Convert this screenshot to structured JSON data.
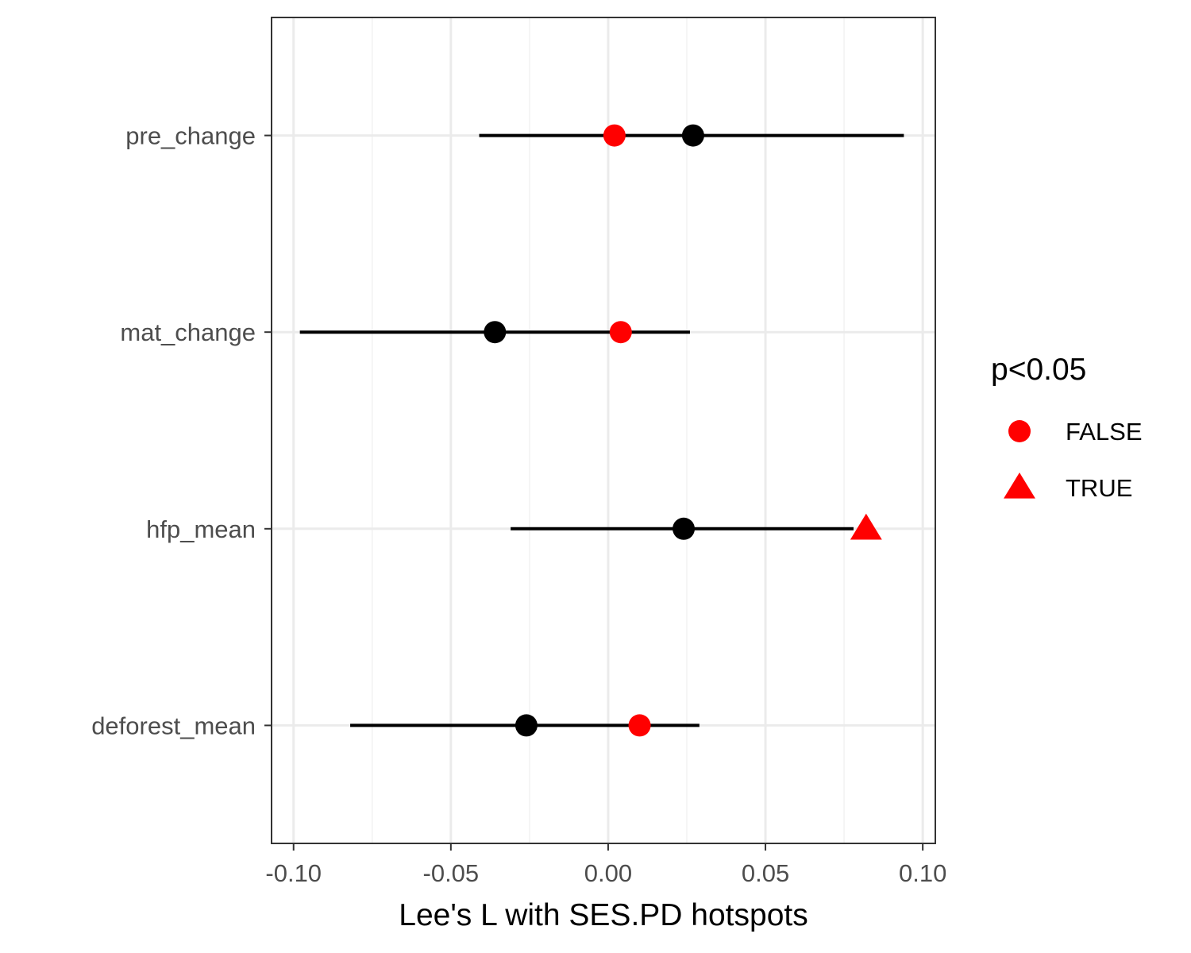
{
  "chart_data": {
    "type": "scatter",
    "subtype": "dot-whisker",
    "xlabel": "Lee's L with SES.PD hotspots",
    "ylabel": "",
    "xlim": [
      -0.107,
      0.104
    ],
    "x_ticks": [
      -0.1,
      -0.05,
      0.0,
      0.05,
      0.1
    ],
    "x_tick_labels": [
      "-0.10",
      "-0.05",
      "0.00",
      "0.05",
      "0.10"
    ],
    "categories": [
      "pre_change",
      "mat_change",
      "hfp_mean",
      "deforest_mean"
    ],
    "grid": true,
    "legend": {
      "title": "p<0.05",
      "position": "right",
      "items": [
        {
          "label": "FALSE",
          "shape": "circle",
          "color": "#ff0000"
        },
        {
          "label": "TRUE",
          "shape": "triangle",
          "color": "#ff0000"
        }
      ]
    },
    "intervals": [
      {
        "category": "pre_change",
        "center": 0.027,
        "low": -0.041,
        "high": 0.094
      },
      {
        "category": "mat_change",
        "center": -0.036,
        "low": -0.098,
        "high": 0.026
      },
      {
        "category": "hfp_mean",
        "center": 0.024,
        "low": -0.031,
        "high": 0.078
      },
      {
        "category": "deforest_mean",
        "center": -0.026,
        "low": -0.082,
        "high": 0.029
      }
    ],
    "observed": [
      {
        "category": "pre_change",
        "value": 0.002,
        "significant": "FALSE"
      },
      {
        "category": "mat_change",
        "value": 0.004,
        "significant": "FALSE"
      },
      {
        "category": "hfp_mean",
        "value": 0.082,
        "significant": "TRUE"
      },
      {
        "category": "deforest_mean",
        "value": 0.01,
        "significant": "FALSE"
      }
    ],
    "colors": {
      "interval": "#000000",
      "observed": "#ff0000",
      "grid_major": "#ebebeb",
      "grid_minor": "#f2f2f2",
      "panel_border": "#333333"
    }
  }
}
